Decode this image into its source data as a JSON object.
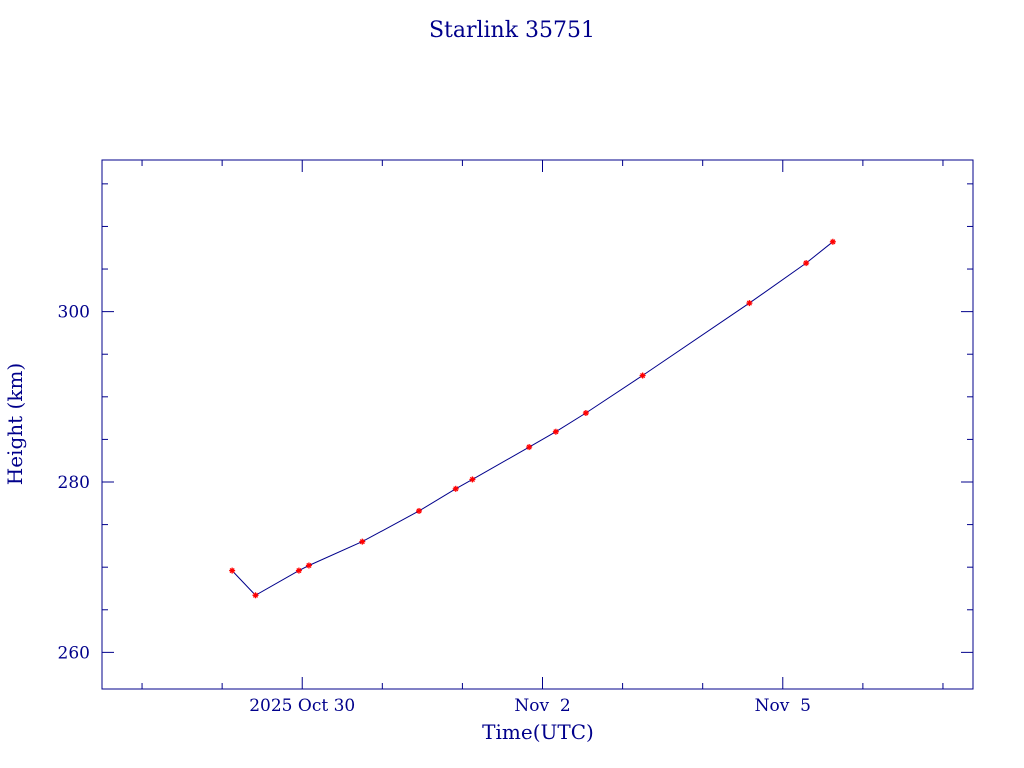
{
  "colors": {
    "axis": "#00008b",
    "text": "#00008b",
    "line": "#00008b",
    "marker": "#ff0000",
    "background": "#ffffff"
  },
  "chart_data": {
    "type": "line",
    "title": "Starlink 35751",
    "xlabel": "Time(UTC)",
    "ylabel": "Height (km)",
    "x_unit": "date (UTC)",
    "xlim": [
      "2025-10-27T12:00",
      "2025-11-07T09:00"
    ],
    "ylim": [
      255.7,
      317.8
    ],
    "x_major_ticks": [
      {
        "label": "2025 Oct 30",
        "value": "2025-10-30T00:00"
      },
      {
        "label": "Nov  2",
        "value": "2025-11-02T00:00"
      },
      {
        "label": "Nov  5",
        "value": "2025-11-05T00:00"
      }
    ],
    "y_major_ticks": [
      {
        "label": "260",
        "value": 260
      },
      {
        "label": "280",
        "value": 280
      },
      {
        "label": "300",
        "value": 300
      }
    ],
    "grid": false,
    "series": [
      {
        "marker": "asterisk",
        "points": [
          {
            "x": "2025-10-29T03:00",
            "y": 269.6
          },
          {
            "x": "2025-10-29T10:00",
            "y": 266.7
          },
          {
            "x": "2025-10-29T23:00",
            "y": 269.6
          },
          {
            "x": "2025-10-30T02:00",
            "y": 270.2
          },
          {
            "x": "2025-10-30T18:00",
            "y": 273.0
          },
          {
            "x": "2025-10-31T11:00",
            "y": 276.6
          },
          {
            "x": "2025-10-31T22:00",
            "y": 279.2
          },
          {
            "x": "2025-11-01T03:00",
            "y": 280.3
          },
          {
            "x": "2025-11-01T20:00",
            "y": 284.1
          },
          {
            "x": "2025-11-02T04:00",
            "y": 285.9
          },
          {
            "x": "2025-11-02T13:00",
            "y": 288.1
          },
          {
            "x": "2025-11-03T06:00",
            "y": 292.5
          },
          {
            "x": "2025-11-04T14:00",
            "y": 301.0
          },
          {
            "x": "2025-11-05T07:00",
            "y": 305.7
          },
          {
            "x": "2025-11-05T15:00",
            "y": 308.2
          }
        ]
      }
    ]
  }
}
